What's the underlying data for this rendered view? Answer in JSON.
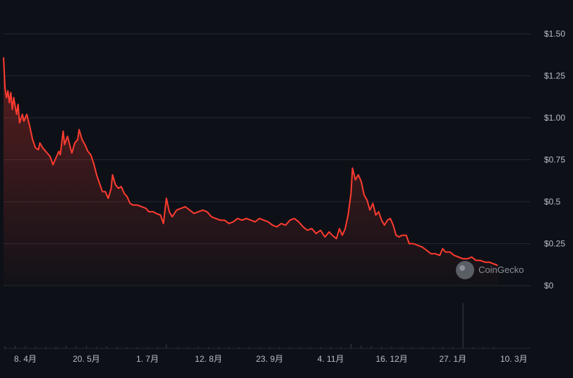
{
  "chart_data": {
    "type": "area",
    "y_ticks": [
      {
        "value": 1.5,
        "label": "$1.50"
      },
      {
        "value": 1.25,
        "label": "$1.25"
      },
      {
        "value": 1.0,
        "label": "$1.00"
      },
      {
        "value": 0.75,
        "label": "$0.75"
      },
      {
        "value": 0.5,
        "label": "$0.5"
      },
      {
        "value": 0.25,
        "label": "$0.25"
      },
      {
        "value": 0,
        "label": "$0"
      }
    ],
    "x_ticks": [
      {
        "label": "8. 4月",
        "date": "2024-04-08"
      },
      {
        "label": "20. 5月",
        "date": "2024-05-20"
      },
      {
        "label": "1. 7月",
        "date": "2024-07-01"
      },
      {
        "label": "12. 8月",
        "date": "2024-08-12"
      },
      {
        "label": "23. 9月",
        "date": "2024-09-23"
      },
      {
        "label": "4. 11月",
        "date": "2024-11-04"
      },
      {
        "label": "16. 12月",
        "date": "2024-12-16"
      },
      {
        "label": "27. 1月",
        "date": "2025-01-27"
      },
      {
        "label": "10. 3月",
        "date": "2025-03-10"
      }
    ],
    "ylim": [
      0,
      1.5
    ],
    "xlim": [
      "2024-03-24",
      "2025-03-23"
    ],
    "grid": true,
    "line_color": "#ff3b30",
    "watermark": "CoinGecko",
    "price_series": [
      [
        "2024-03-24",
        1.36
      ],
      [
        "2024-03-25",
        1.18
      ],
      [
        "2024-03-26",
        1.12
      ],
      [
        "2024-03-27",
        1.16
      ],
      [
        "2024-03-28",
        1.09
      ],
      [
        "2024-03-29",
        1.15
      ],
      [
        "2024-03-30",
        1.05
      ],
      [
        "2024-03-31",
        1.12
      ],
      [
        "2024-04-02",
        1.02
      ],
      [
        "2024-04-03",
        1.08
      ],
      [
        "2024-04-04",
        0.97
      ],
      [
        "2024-04-06",
        1.02
      ],
      [
        "2024-04-07",
        0.98
      ],
      [
        "2024-04-09",
        1.02
      ],
      [
        "2024-04-11",
        0.95
      ],
      [
        "2024-04-13",
        0.87
      ],
      [
        "2024-04-15",
        0.82
      ],
      [
        "2024-04-17",
        0.81
      ],
      [
        "2024-04-18",
        0.85
      ],
      [
        "2024-04-20",
        0.82
      ],
      [
        "2024-04-23",
        0.79
      ],
      [
        "2024-04-25",
        0.77
      ],
      [
        "2024-04-27",
        0.72
      ],
      [
        "2024-04-29",
        0.76
      ],
      [
        "2024-05-01",
        0.8
      ],
      [
        "2024-05-02",
        0.78
      ],
      [
        "2024-05-04",
        0.92
      ],
      [
        "2024-05-05",
        0.84
      ],
      [
        "2024-05-07",
        0.89
      ],
      [
        "2024-05-09",
        0.82
      ],
      [
        "2024-05-10",
        0.79
      ],
      [
        "2024-05-12",
        0.85
      ],
      [
        "2024-05-14",
        0.87
      ],
      [
        "2024-05-15",
        0.93
      ],
      [
        "2024-05-17",
        0.87
      ],
      [
        "2024-05-19",
        0.84
      ],
      [
        "2024-05-21",
        0.8
      ],
      [
        "2024-05-23",
        0.78
      ],
      [
        "2024-05-25",
        0.73
      ],
      [
        "2024-05-27",
        0.66
      ],
      [
        "2024-05-29",
        0.61
      ],
      [
        "2024-05-31",
        0.56
      ],
      [
        "2024-06-02",
        0.56
      ],
      [
        "2024-06-04",
        0.52
      ],
      [
        "2024-06-06",
        0.58
      ],
      [
        "2024-06-07",
        0.66
      ],
      [
        "2024-06-09",
        0.6
      ],
      [
        "2024-06-11",
        0.58
      ],
      [
        "2024-06-13",
        0.59
      ],
      [
        "2024-06-15",
        0.55
      ],
      [
        "2024-06-17",
        0.53
      ],
      [
        "2024-06-19",
        0.49
      ],
      [
        "2024-06-21",
        0.48
      ],
      [
        "2024-06-24",
        0.48
      ],
      [
        "2024-06-27",
        0.47
      ],
      [
        "2024-06-30",
        0.46
      ],
      [
        "2024-07-02",
        0.44
      ],
      [
        "2024-07-05",
        0.44
      ],
      [
        "2024-07-07",
        0.43
      ],
      [
        "2024-07-10",
        0.42
      ],
      [
        "2024-07-12",
        0.37
      ],
      [
        "2024-07-14",
        0.52
      ],
      [
        "2024-07-16",
        0.44
      ],
      [
        "2024-07-18",
        0.41
      ],
      [
        "2024-07-21",
        0.45
      ],
      [
        "2024-07-24",
        0.46
      ],
      [
        "2024-07-27",
        0.47
      ],
      [
        "2024-07-30",
        0.45
      ],
      [
        "2024-08-02",
        0.43
      ],
      [
        "2024-08-05",
        0.44
      ],
      [
        "2024-08-08",
        0.45
      ],
      [
        "2024-08-11",
        0.44
      ],
      [
        "2024-08-14",
        0.41
      ],
      [
        "2024-08-17",
        0.4
      ],
      [
        "2024-08-20",
        0.39
      ],
      [
        "2024-08-23",
        0.39
      ],
      [
        "2024-08-26",
        0.37
      ],
      [
        "2024-08-29",
        0.38
      ],
      [
        "2024-09-01",
        0.4
      ],
      [
        "2024-09-04",
        0.39
      ],
      [
        "2024-09-07",
        0.4
      ],
      [
        "2024-09-10",
        0.39
      ],
      [
        "2024-09-13",
        0.38
      ],
      [
        "2024-09-16",
        0.4
      ],
      [
        "2024-09-19",
        0.39
      ],
      [
        "2024-09-22",
        0.38
      ],
      [
        "2024-09-25",
        0.36
      ],
      [
        "2024-09-28",
        0.35
      ],
      [
        "2024-10-01",
        0.37
      ],
      [
        "2024-10-04",
        0.36
      ],
      [
        "2024-10-07",
        0.39
      ],
      [
        "2024-10-10",
        0.4
      ],
      [
        "2024-10-13",
        0.38
      ],
      [
        "2024-10-16",
        0.35
      ],
      [
        "2024-10-19",
        0.33
      ],
      [
        "2024-10-22",
        0.34
      ],
      [
        "2024-10-25",
        0.31
      ],
      [
        "2024-10-28",
        0.33
      ],
      [
        "2024-10-31",
        0.29
      ],
      [
        "2024-11-03",
        0.32
      ],
      [
        "2024-11-05",
        0.3
      ],
      [
        "2024-11-08",
        0.28
      ],
      [
        "2024-11-10",
        0.34
      ],
      [
        "2024-11-12",
        0.3
      ],
      [
        "2024-11-14",
        0.34
      ],
      [
        "2024-11-16",
        0.42
      ],
      [
        "2024-11-18",
        0.55
      ],
      [
        "2024-11-19",
        0.7
      ],
      [
        "2024-11-21",
        0.63
      ],
      [
        "2024-11-23",
        0.66
      ],
      [
        "2024-11-25",
        0.62
      ],
      [
        "2024-11-27",
        0.54
      ],
      [
        "2024-11-29",
        0.51
      ],
      [
        "2024-12-01",
        0.45
      ],
      [
        "2024-12-03",
        0.49
      ],
      [
        "2024-12-05",
        0.42
      ],
      [
        "2024-12-07",
        0.44
      ],
      [
        "2024-12-09",
        0.39
      ],
      [
        "2024-12-11",
        0.36
      ],
      [
        "2024-12-13",
        0.39
      ],
      [
        "2024-12-15",
        0.4
      ],
      [
        "2024-12-17",
        0.36
      ],
      [
        "2024-12-19",
        0.3
      ],
      [
        "2024-12-21",
        0.29
      ],
      [
        "2024-12-23",
        0.3
      ],
      [
        "2024-12-26",
        0.3
      ],
      [
        "2024-12-28",
        0.25
      ],
      [
        "2024-12-31",
        0.25
      ],
      [
        "2025-01-03",
        0.24
      ],
      [
        "2025-01-06",
        0.23
      ],
      [
        "2025-01-09",
        0.21
      ],
      [
        "2025-01-12",
        0.19
      ],
      [
        "2025-01-15",
        0.19
      ],
      [
        "2025-01-18",
        0.18
      ],
      [
        "2025-01-20",
        0.22
      ],
      [
        "2025-01-22",
        0.2
      ],
      [
        "2025-01-25",
        0.2
      ],
      [
        "2025-01-28",
        0.18
      ],
      [
        "2025-01-31",
        0.17
      ],
      [
        "2025-02-03",
        0.16
      ],
      [
        "2025-02-06",
        0.16
      ],
      [
        "2025-02-09",
        0.17
      ],
      [
        "2025-02-12",
        0.15
      ],
      [
        "2025-02-15",
        0.15
      ],
      [
        "2025-02-18",
        0.14
      ],
      [
        "2025-02-21",
        0.14
      ],
      [
        "2025-02-24",
        0.13
      ],
      [
        "2025-02-27",
        0.12
      ]
    ],
    "volume_series": [
      [
        "2024-03-25",
        0.05
      ],
      [
        "2024-04-01",
        0.06
      ],
      [
        "2024-04-08",
        0.05
      ],
      [
        "2024-04-15",
        0.04
      ],
      [
        "2024-04-22",
        0.04
      ],
      [
        "2024-04-29",
        0.04
      ],
      [
        "2024-05-06",
        0.06
      ],
      [
        "2024-05-13",
        0.05
      ],
      [
        "2024-05-20",
        0.05
      ],
      [
        "2024-05-27",
        0.04
      ],
      [
        "2024-06-03",
        0.05
      ],
      [
        "2024-06-10",
        0.04
      ],
      [
        "2024-06-17",
        0.03
      ],
      [
        "2024-06-24",
        0.03
      ],
      [
        "2024-07-01",
        0.03
      ],
      [
        "2024-07-08",
        0.03
      ],
      [
        "2024-07-14",
        0.09
      ],
      [
        "2024-07-22",
        0.03
      ],
      [
        "2024-07-29",
        0.03
      ],
      [
        "2024-08-05",
        0.04
      ],
      [
        "2024-08-12",
        0.03
      ],
      [
        "2024-08-19",
        0.03
      ],
      [
        "2024-08-26",
        0.03
      ],
      [
        "2024-09-02",
        0.03
      ],
      [
        "2024-09-09",
        0.03
      ],
      [
        "2024-09-16",
        0.03
      ],
      [
        "2024-09-23",
        0.03
      ],
      [
        "2024-09-30",
        0.03
      ],
      [
        "2024-10-07",
        0.03
      ],
      [
        "2024-10-14",
        0.03
      ],
      [
        "2024-10-21",
        0.03
      ],
      [
        "2024-10-28",
        0.03
      ],
      [
        "2024-11-04",
        0.03
      ],
      [
        "2024-11-11",
        0.04
      ],
      [
        "2024-11-18",
        0.1
      ],
      [
        "2024-11-25",
        0.06
      ],
      [
        "2024-12-02",
        0.05
      ],
      [
        "2024-12-09",
        0.04
      ],
      [
        "2024-12-16",
        0.04
      ],
      [
        "2024-12-23",
        0.03
      ],
      [
        "2024-12-30",
        0.03
      ],
      [
        "2025-01-06",
        0.03
      ],
      [
        "2025-01-13",
        0.03
      ],
      [
        "2025-01-20",
        0.03
      ],
      [
        "2025-01-27",
        0.03
      ],
      [
        "2025-02-03",
        1.0
      ],
      [
        "2025-02-10",
        0.03
      ],
      [
        "2025-02-17",
        0.03
      ],
      [
        "2025-02-24",
        0.03
      ]
    ]
  }
}
